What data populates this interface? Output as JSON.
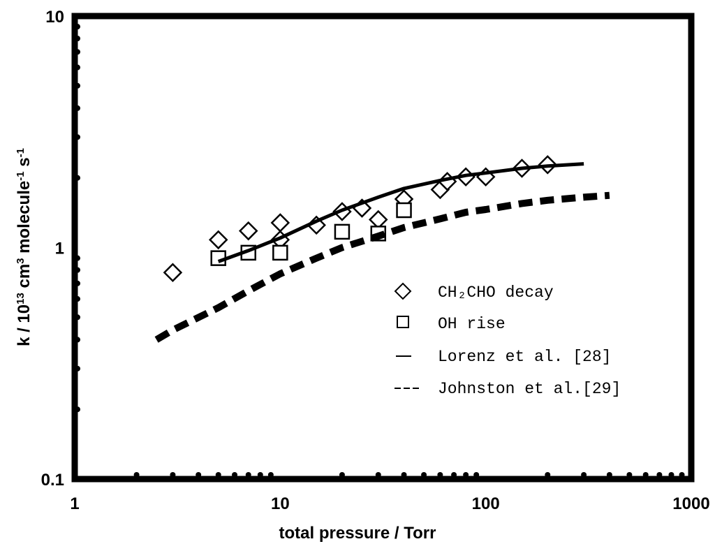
{
  "chart_data": {
    "type": "scatter",
    "xscale": "log",
    "yscale": "log",
    "xlim": [
      1,
      1000
    ],
    "ylim": [
      0.1,
      10
    ],
    "xlabel": "total pressure / Torr",
    "ylabel": "k / 10^13 cm^3 molecule^-1 s^-1",
    "x_ticks": [
      "1",
      "10",
      "100",
      "1000"
    ],
    "y_ticks": [
      "0.1",
      "1",
      "10"
    ],
    "legend_position": "center-right",
    "series": [
      {
        "name": "CH₂CHO decay",
        "kind": "marker",
        "marker": "diamond",
        "points": [
          [
            3,
            0.78
          ],
          [
            5,
            1.08
          ],
          [
            7,
            1.18
          ],
          [
            10,
            1.28
          ],
          [
            10,
            1.08
          ],
          [
            15,
            1.25
          ],
          [
            20,
            1.43
          ],
          [
            25,
            1.48
          ],
          [
            30,
            1.32
          ],
          [
            40,
            1.62
          ],
          [
            60,
            1.78
          ],
          [
            65,
            1.93
          ],
          [
            80,
            2.02
          ],
          [
            100,
            2.02
          ],
          [
            150,
            2.2
          ],
          [
            200,
            2.28
          ]
        ]
      },
      {
        "name": "OH rise",
        "kind": "marker",
        "marker": "square",
        "points": [
          [
            5,
            0.9
          ],
          [
            7,
            0.95
          ],
          [
            10,
            0.95
          ],
          [
            20,
            1.17
          ],
          [
            30,
            1.15
          ],
          [
            40,
            1.45
          ]
        ]
      },
      {
        "name": "Lorenz et al. [28]",
        "kind": "line",
        "style": "solid",
        "points": [
          [
            5,
            0.87
          ],
          [
            7,
            0.97
          ],
          [
            10,
            1.1
          ],
          [
            15,
            1.3
          ],
          [
            20,
            1.45
          ],
          [
            30,
            1.65
          ],
          [
            40,
            1.8
          ],
          [
            60,
            1.95
          ],
          [
            80,
            2.05
          ],
          [
            100,
            2.1
          ],
          [
            150,
            2.2
          ],
          [
            200,
            2.25
          ],
          [
            300,
            2.3
          ]
        ]
      },
      {
        "name": "Johnston et al.[29]",
        "kind": "line",
        "style": "dashed",
        "points": [
          [
            2.5,
            0.4
          ],
          [
            3,
            0.44
          ],
          [
            5,
            0.55
          ],
          [
            7,
            0.65
          ],
          [
            10,
            0.77
          ],
          [
            15,
            0.9
          ],
          [
            20,
            1.0
          ],
          [
            30,
            1.12
          ],
          [
            40,
            1.22
          ],
          [
            60,
            1.33
          ],
          [
            80,
            1.42
          ],
          [
            100,
            1.46
          ],
          [
            150,
            1.55
          ],
          [
            200,
            1.6
          ],
          [
            300,
            1.65
          ],
          [
            400,
            1.68
          ]
        ]
      }
    ],
    "legend_entries": [
      {
        "symbol": "◇",
        "label": "CH₂CHO decay"
      },
      {
        "symbol": "□",
        "label": "OH rise"
      },
      {
        "symbol": "—",
        "label": "Lorenz et al. [28]"
      },
      {
        "symbol": "---",
        "label": "Johnston et al.[29]"
      }
    ]
  }
}
